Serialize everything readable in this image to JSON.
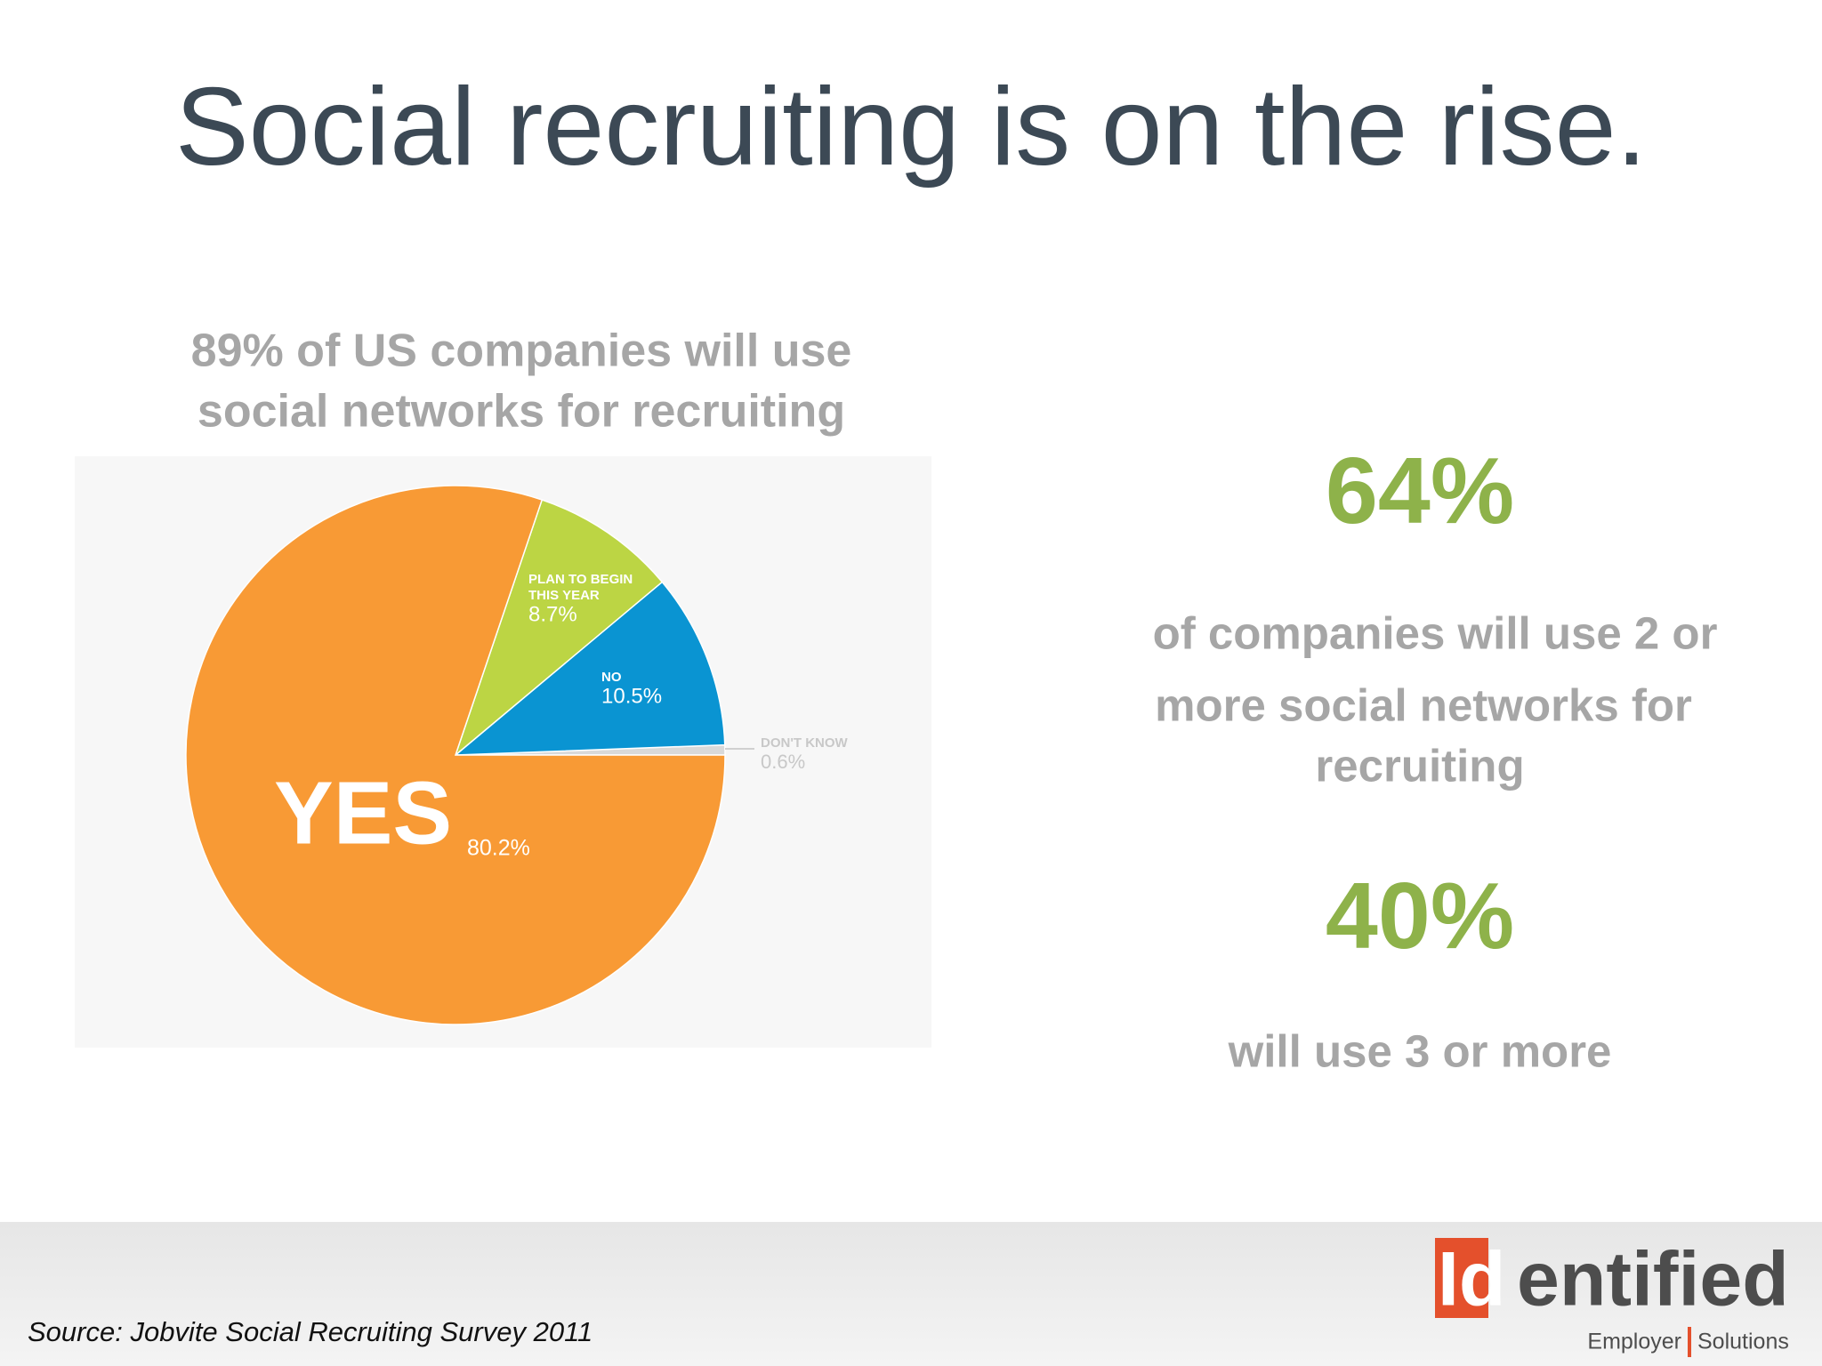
{
  "title": "Social recruiting is on the rise.",
  "subtitle": [
    "89% of US companies will use",
    "social networks for recruiting"
  ],
  "stats": [
    {
      "figure": "64%",
      "text": [
        "of companies will use 2 or",
        "more social networks for",
        "recruiting"
      ]
    },
    {
      "figure": "40%",
      "text": [
        "will use 3 or more"
      ]
    }
  ],
  "source": "Source: Jobvite Social Recruiting Survey 2011",
  "logo": {
    "mark": "Id",
    "name": "entified",
    "tagline": [
      "Employer",
      "Solutions"
    ]
  },
  "chart_data": {
    "type": "pie",
    "categories": [
      "DON'T KNOW",
      "NO",
      "PLAN TO BEGIN THIS YEAR",
      "YES"
    ],
    "values": [
      0.6,
      10.5,
      8.7,
      80.2
    ],
    "value_labels": [
      "0.6%",
      "10.5%",
      "8.7%",
      "80.2%"
    ],
    "colors": [
      "#d9d9d9",
      "#0a94d2",
      "#bcd544",
      "#f89a35"
    ]
  }
}
